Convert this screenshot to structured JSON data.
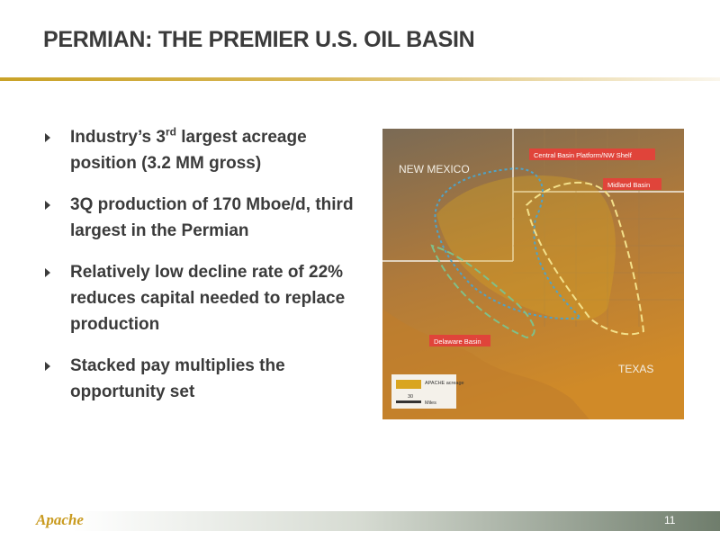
{
  "header": {
    "title": "PERMIAN: THE PREMIER U.S. OIL BASIN"
  },
  "bullets": [
    {
      "parts": [
        "Industry’s 3",
        "rd",
        " largest acreage position (3.2 MM gross)"
      ]
    },
    {
      "parts": [
        "3Q production of 170 Mboe/d, third largest in the Permian"
      ]
    },
    {
      "parts": [
        "Relatively low decline rate of 22% reduces capital needed to replace production"
      ]
    },
    {
      "parts": [
        "Stacked pay multiplies the opportunity set"
      ]
    }
  ],
  "map": {
    "labels": [
      "NEW MEXICO",
      "TEXAS"
    ],
    "callouts": [
      "Central Basin Platform/NW Shelf",
      "Midland Basin",
      "Delaware Basin"
    ],
    "legend": {
      "label": "APACHE acreage",
      "scale": "30",
      "unit": "Miles"
    }
  },
  "footer": {
    "logo": "Apache",
    "page": "11"
  }
}
